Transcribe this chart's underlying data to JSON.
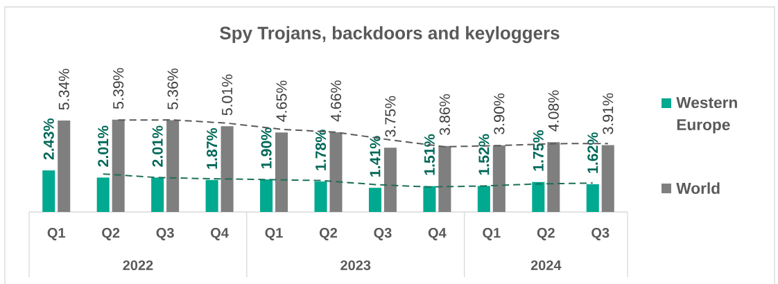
{
  "chart_data": {
    "type": "bar",
    "title": "Spy Trojans, backdoors and keyloggers",
    "categories": [
      "Q1",
      "Q2",
      "Q3",
      "Q4",
      "Q1",
      "Q2",
      "Q3",
      "Q4",
      "Q1",
      "Q2",
      "Q3"
    ],
    "annotations": [
      "2022",
      "2023",
      "2024"
    ],
    "series": [
      {
        "name": "Western Europe",
        "color": "#00a98f",
        "values": [
          2.43,
          2.01,
          2.01,
          1.87,
          1.9,
          1.78,
          1.41,
          1.51,
          1.52,
          1.75,
          1.62
        ],
        "value_labels": [
          "2.43%",
          "2.01%",
          "2.01%",
          "1.87%",
          "1.90%",
          "1.78%",
          "1.41%",
          "1.51%",
          "1.52%",
          "1.75%",
          "1.62%"
        ]
      },
      {
        "name": "World",
        "color": "#7f7f7f",
        "values": [
          5.34,
          5.39,
          5.36,
          5.01,
          4.65,
          4.66,
          3.75,
          3.86,
          3.9,
          4.08,
          3.91
        ],
        "value_labels": [
          "5.34%",
          "5.39%",
          "5.36%",
          "5.01%",
          "4.65%",
          "4.66%",
          "3.75%",
          "3.86%",
          "3.90%",
          "4.08%",
          "3.91%"
        ]
      },
      {
        "type": "line",
        "color": "#1e6e58",
        "line_style": "dashed",
        "values": [
          null,
          2.22,
          2.01,
          1.94,
          1.89,
          1.84,
          1.6,
          1.46,
          1.52,
          1.64,
          1.69
        ]
      },
      {
        "type": "line",
        "color": "#595959",
        "line_style": "dashed",
        "values": [
          null,
          5.37,
          5.38,
          5.19,
          4.83,
          4.66,
          4.21,
          3.81,
          3.88,
          3.99,
          4.0
        ]
      }
    ],
    "tick_labels": "x",
    "legend": "right"
  }
}
